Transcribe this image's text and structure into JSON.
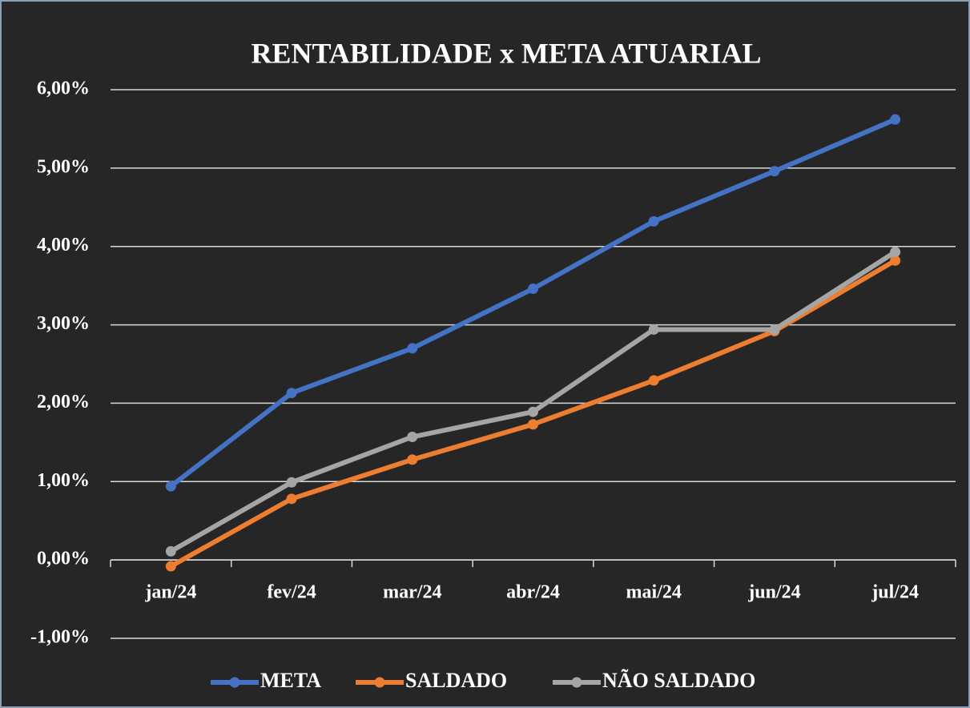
{
  "chart_data": {
    "type": "line",
    "title": "RENTABILIDADE x META ATUARIAL",
    "categories": [
      "jan/24",
      "fev/24",
      "mar/24",
      "abr/24",
      "mai/24",
      "jun/24",
      "jul/24"
    ],
    "series": [
      {
        "name": "META",
        "color": "#4472c4",
        "values": [
          0.94,
          2.13,
          2.7,
          3.46,
          4.32,
          4.96,
          5.62
        ]
      },
      {
        "name": "SALDADO",
        "color": "#ed7d31",
        "values": [
          -0.08,
          0.78,
          1.28,
          1.73,
          2.29,
          2.92,
          3.82
        ]
      },
      {
        "name": "NÃO SALDADO",
        "color": "#a5a5a5",
        "values": [
          0.11,
          0.99,
          1.57,
          1.89,
          2.94,
          2.94,
          3.93
        ]
      }
    ],
    "ylim": [
      -1,
      6
    ],
    "yticks": [
      {
        "value": -1,
        "label": "-1,00%"
      },
      {
        "value": 0,
        "label": "0,00%"
      },
      {
        "value": 1,
        "label": "1,00%"
      },
      {
        "value": 2,
        "label": "2,00%"
      },
      {
        "value": 3,
        "label": "3,00%"
      },
      {
        "value": 4,
        "label": "4,00%"
      },
      {
        "value": 5,
        "label": "5,00%"
      },
      {
        "value": 6,
        "label": "6,00%"
      }
    ],
    "grid": true,
    "legend": "bottom"
  }
}
